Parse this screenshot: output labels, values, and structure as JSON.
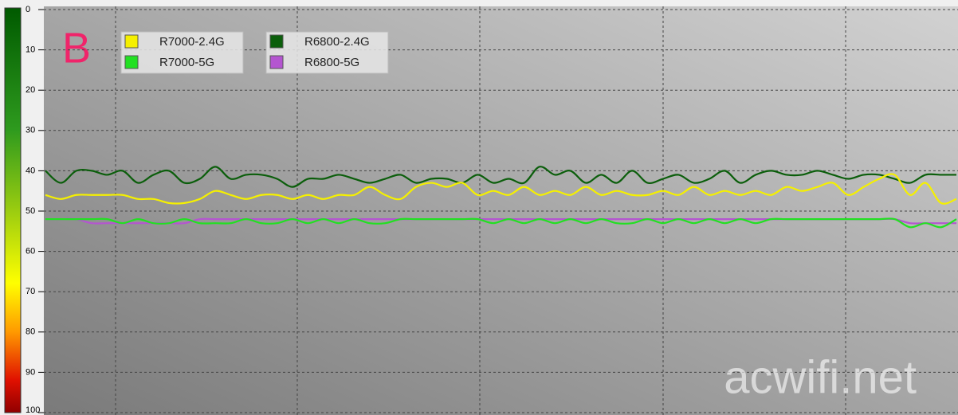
{
  "chart_data": {
    "type": "line",
    "annotation": "B",
    "watermark": "acwifi.net",
    "ylim": [
      0,
      100
    ],
    "y_inverted": true,
    "yticks": [
      0,
      10,
      20,
      30,
      40,
      50,
      60,
      70,
      80,
      90,
      100
    ],
    "grid": true,
    "legend": "upper left",
    "series": [
      {
        "name": "R7000-2.4G",
        "color": "#f5f000",
        "values": [
          46,
          47,
          46,
          46,
          46,
          46,
          47,
          47,
          48,
          48,
          47,
          45,
          46,
          47,
          46,
          46,
          47,
          46,
          47,
          46,
          46,
          44,
          46,
          47,
          44,
          43,
          44,
          43,
          46,
          45,
          46,
          44,
          46,
          45,
          46,
          44,
          46,
          45,
          46,
          46,
          45,
          46,
          44,
          46,
          45,
          46,
          45,
          46,
          44,
          45,
          44,
          43,
          46,
          44,
          42,
          41,
          46,
          43,
          48,
          47
        ]
      },
      {
        "name": "R7000-5G",
        "color": "#22e022",
        "values": [
          52,
          52,
          52,
          52,
          52,
          53,
          52,
          53,
          53,
          52,
          53,
          53,
          53,
          52,
          53,
          53,
          52,
          53,
          52,
          53,
          52,
          53,
          53,
          52,
          52,
          52,
          52,
          52,
          52,
          53,
          52,
          53,
          52,
          53,
          52,
          53,
          52,
          53,
          53,
          52,
          53,
          52,
          53,
          52,
          53,
          52,
          53,
          52,
          52,
          52,
          52,
          52,
          52,
          52,
          52,
          52,
          54,
          53,
          54,
          52
        ]
      },
      {
        "name": "R6800-2.4G",
        "color": "#0b5e0b",
        "values": [
          40,
          43,
          40,
          40,
          41,
          40,
          43,
          41,
          40,
          43,
          42,
          39,
          42,
          41,
          41,
          42,
          44,
          42,
          42,
          41,
          42,
          43,
          42,
          41,
          43,
          42,
          42,
          43,
          41,
          43,
          42,
          43,
          39,
          41,
          40,
          43,
          41,
          43,
          40,
          43,
          42,
          41,
          43,
          42,
          40,
          43,
          41,
          40,
          41,
          41,
          40,
          41,
          42,
          41,
          41,
          42,
          43,
          41,
          41,
          41
        ]
      },
      {
        "name": "R6800-5G",
        "color": "#b455d0",
        "values": [
          52,
          52,
          52,
          53,
          53,
          53,
          53,
          53,
          53,
          53,
          52,
          52,
          52,
          52,
          52,
          52,
          52,
          52,
          52,
          52,
          52,
          52,
          52,
          52,
          52,
          52,
          52,
          52,
          52,
          52,
          52,
          52,
          52,
          52,
          52,
          52,
          52,
          52,
          52,
          52,
          52,
          52,
          52,
          52,
          52,
          52,
          52,
          52,
          52,
          52,
          52,
          52,
          52,
          52,
          52,
          52,
          53,
          53,
          53,
          53
        ]
      }
    ]
  }
}
